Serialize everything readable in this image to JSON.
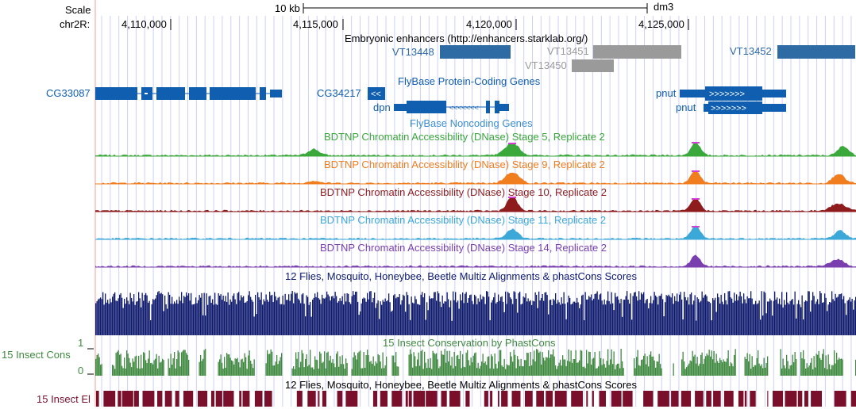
{
  "colors": {
    "enhancer": "#2e6aa3",
    "enhancer_gray": "#9a9a9a",
    "gene": "#0f5eb0",
    "stage5": "#3aa83a",
    "stage9": "#f07d1e",
    "stage10": "#8e1c1c",
    "stage11": "#3ba8d8",
    "stage14": "#7a3fae",
    "peak_top": "#d63fd6",
    "multiz": "#0e1a6e",
    "cons": "#3f8a3f",
    "el": "#7a0f2c",
    "grid": "#cfcfff",
    "redline": "#ff9a9a"
  },
  "scale": {
    "label": "Scale",
    "bar_label": "10 kb",
    "assembly": "dm3"
  },
  "ruler": {
    "label": "chr2R:",
    "ticks": [
      {
        "text": "4,110,000"
      },
      {
        "text": "4,115,000"
      },
      {
        "text": "4,120,000"
      },
      {
        "text": "4,125,000"
      }
    ]
  },
  "enhancers": {
    "title": "Embryonic enhancers (http://enhancers.starklab.org/)",
    "items": [
      {
        "name": "VT13448",
        "color": "blue"
      },
      {
        "name": "VT13451",
        "color": "gray"
      },
      {
        "name": "VT13450",
        "color": "gray"
      },
      {
        "name": "VT13452",
        "color": "blue"
      }
    ]
  },
  "genes": {
    "coding_title": "FlyBase Protein-Coding Genes",
    "noncoding_title": "FlyBase Noncoding Genes",
    "items": [
      {
        "name": "CG33087"
      },
      {
        "name": "CG34217"
      },
      {
        "name": "dpn"
      },
      {
        "name": "pnut"
      },
      {
        "name": "pnut"
      }
    ]
  },
  "tracks": {
    "stage5": "BDTNP Chromatin Accessibility (DNase) Stage 5, Replicate 2",
    "stage9": "BDTNP Chromatin Accessibility (DNase) Stage 9, Replicate 2",
    "stage10": "BDTNP Chromatin Accessibility (DNase) Stage 10, Replicate 2",
    "stage11": "BDTNP Chromatin Accessibility (DNase) Stage 11, Replicate 2",
    "stage14": "BDTNP Chromatin Accessibility (DNase) Stage 14, Replicate 2",
    "multiz": "12 Flies, Mosquito, Honeybee, Beetle Multiz Alignments & phastCons Scores",
    "cons_title": "15 Insect Conservation by PhastCons",
    "multiz2": "12 Flies, Mosquito, Honeybee, Beetle Multiz Alignments & phastCons Scores"
  },
  "side_labels": {
    "cons": "15 Insect Cons",
    "cons_max": "1",
    "cons_min": "0",
    "el": "15 Insect El"
  }
}
